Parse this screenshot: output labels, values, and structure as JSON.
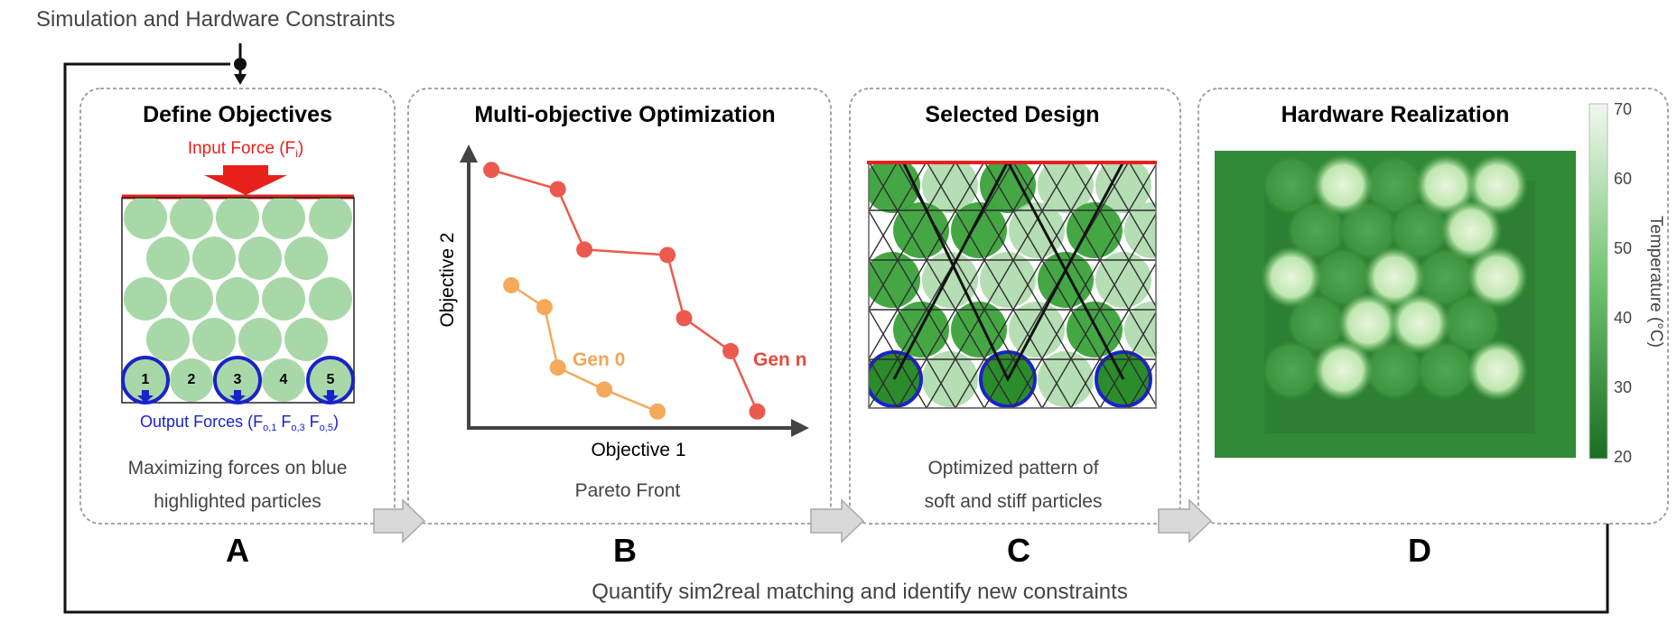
{
  "header": {
    "constraints_label": "Simulation and Hardware Constraints"
  },
  "panels": {
    "a": {
      "title": "Define Objectives",
      "input_force": "Input Force (F",
      "input_force_sub": "i",
      "input_force_close": ")",
      "particle_numbers": [
        "1",
        "2",
        "3",
        "4",
        "5"
      ],
      "output_forces": {
        "prefix": "Output Forces (F",
        "s1": "o,1",
        "mid1": " F",
        "s2": "o,3",
        "mid2": " F",
        "s3": "o,5",
        "suffix": ")"
      },
      "caption_line1": "Maximizing forces on blue",
      "caption_line2": "highlighted particles",
      "letter": "A"
    },
    "b": {
      "title": "Multi-objective Optimization",
      "x_axis_label": "Objective 1",
      "y_axis_label": "Objective 2",
      "caption": "Pareto Front",
      "letter": "B"
    },
    "c": {
      "title": "Selected Design",
      "caption_line1": "Optimized pattern of",
      "caption_line2": "soft and stiff particles",
      "letter": "C"
    },
    "d": {
      "title": "Hardware Realization",
      "colorbar_label": "Temperature (°C)",
      "colorbar_ticks": [
        "70",
        "60",
        "50",
        "40",
        "30",
        "20"
      ],
      "letter": "D"
    }
  },
  "footer": {
    "feedback_label": "Quantify sim2real matching and identify new constraints"
  },
  "colors": {
    "input_red": "#e8201c",
    "output_blue": "#1a22cc",
    "soft_green": "#a8d8a8",
    "stiff_green": "#3aa23a",
    "gen0": "#f5a95a",
    "genn": "#ec5a4d",
    "gen0_label": "#f3a55a",
    "genn_label": "#e84a3e"
  },
  "chart_data": {
    "type": "scatter",
    "title": "",
    "xlabel": "Objective 1",
    "ylabel": "Objective 2",
    "series": [
      {
        "name": "Gen n",
        "color": "#ec5a4d",
        "x": [
          0.06,
          0.26,
          0.34,
          0.59,
          0.64,
          0.78,
          0.86
        ],
        "y": [
          0.94,
          0.87,
          0.65,
          0.63,
          0.4,
          0.28,
          0.06
        ]
      },
      {
        "name": "Gen 0",
        "color": "#f5a95a",
        "x": [
          0.12,
          0.22,
          0.26,
          0.4,
          0.56
        ],
        "y": [
          0.52,
          0.44,
          0.22,
          0.14,
          0.06
        ]
      }
    ]
  }
}
